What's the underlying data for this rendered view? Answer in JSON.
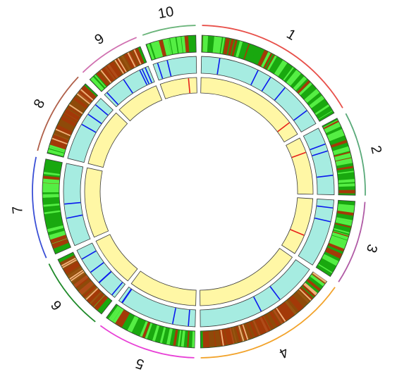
{
  "diagram": {
    "type": "circos",
    "chromosomes": [
      {
        "label": "1",
        "span_deg": 66,
        "color": "#e8504a"
      },
      {
        "label": "2",
        "span_deg": 33,
        "color": "#5aaa7a"
      },
      {
        "label": "3",
        "span_deg": 33,
        "color": "#b05aa5"
      },
      {
        "label": "4",
        "span_deg": 61,
        "color": "#f2a32b"
      },
      {
        "label": "5",
        "span_deg": 39,
        "color": "#e83fd6"
      },
      {
        "label": "6",
        "span_deg": 29,
        "color": "#1f8a2a"
      },
      {
        "label": "7",
        "span_deg": 40,
        "color": "#3a4fd6"
      },
      {
        "label": "8",
        "span_deg": 33,
        "color": "#b0604a"
      },
      {
        "label": "9",
        "span_deg": 25,
        "color": "#d070b0"
      },
      {
        "label": "10",
        "span_deg": 21,
        "color": "#6ab47a"
      }
    ],
    "tracks": {
      "outer": {
        "base_color": "#19a80f",
        "light_color": "#55ee44",
        "brown_color": "#a33a08",
        "tan_color": "#f2b27a"
      },
      "middle": {
        "fill": "#a6ece1",
        "mark_color": "#0a18ee"
      },
      "inner": {
        "fill": "#fff7a5",
        "mark_color": "#e8201a"
      }
    }
  }
}
